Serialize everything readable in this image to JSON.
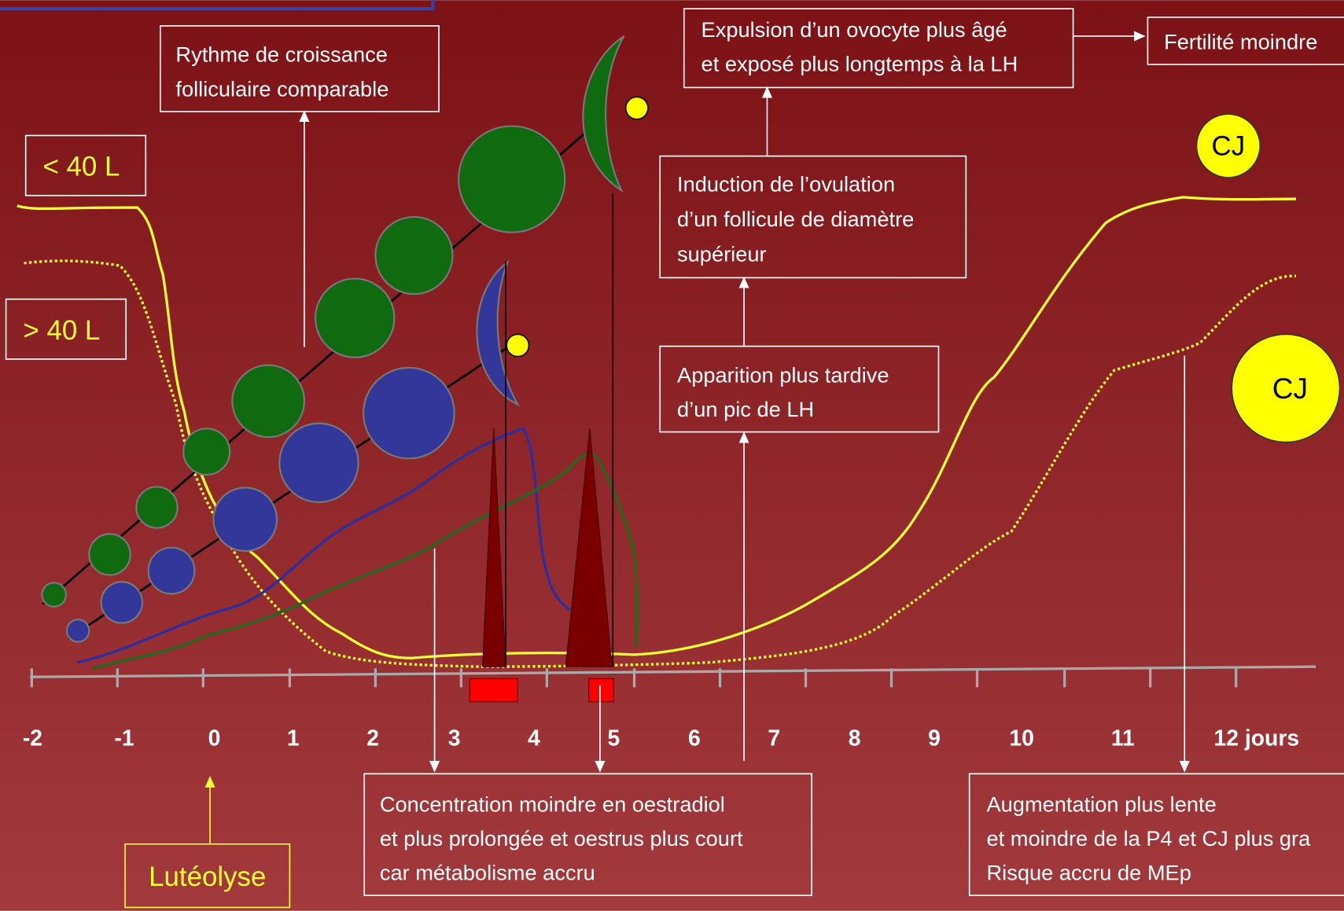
{
  "labels": {
    "under_40": "< 40 L",
    "over_40": "> 40 L",
    "cj_1": "CJ",
    "cj_2": "CJ",
    "luteolysis": "Lutéolyse"
  },
  "notes": {
    "growth": [
      "Rythme de croissance",
      "folliculaire comparable"
    ],
    "expulsion": [
      "Expulsion d’un ovocyte plus âgé",
      "et exposé plus longtemps à la LH"
    ],
    "fertility": "Fertilité moindre",
    "induction": [
      "Induction de l’ovulation",
      "d’un follicule de diamètre",
      "supérieur"
    ],
    "lh_peak": [
      "Apparition plus tardive",
      "d’un pic de LH"
    ],
    "estradiol": [
      "Concentration moindre en oestradiol",
      "et plus prolongée et oestrus plus court",
      "car métabolisme accru"
    ],
    "progesterone": [
      "Augmentation plus lente",
      "et moindre de la P4 et CJ plus gra",
      "Risque accru de MEp"
    ]
  },
  "axis": {
    "labels": [
      "-2",
      "-1",
      "0",
      "1",
      "2",
      "3",
      "4",
      "5",
      "6",
      "7",
      "8",
      "9",
      "10",
      "11",
      "12 jours"
    ]
  }
}
